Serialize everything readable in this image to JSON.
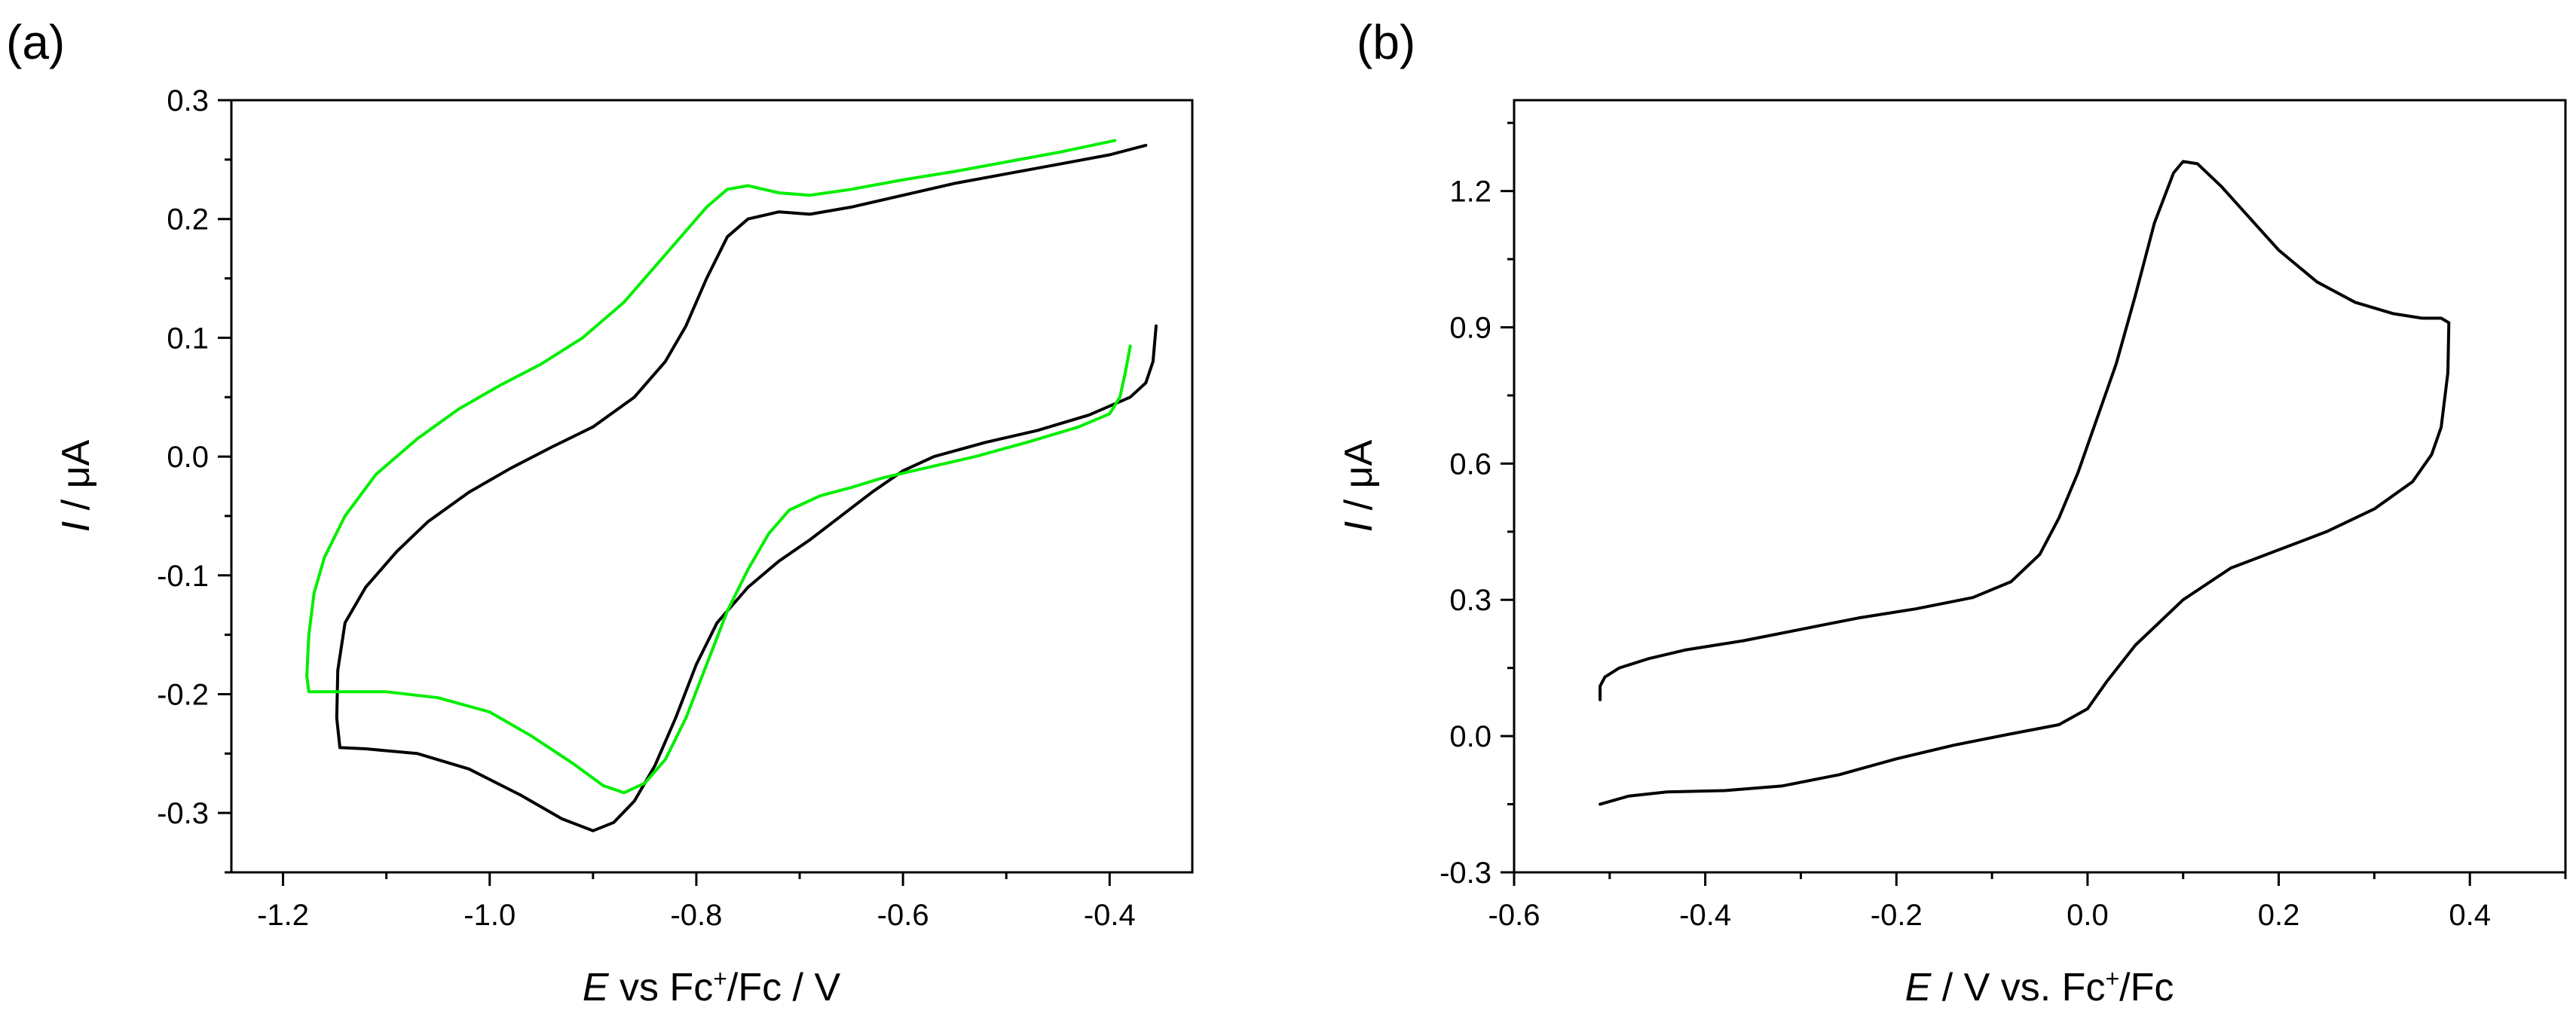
{
  "chart_data": [
    {
      "panel": "(a)",
      "type": "line",
      "xlabel": "E vs Fc+/Fc / V",
      "xlabel_parts": {
        "var": "E",
        "pre": " vs Fc",
        "sup": "+",
        "post": "/Fc / V"
      },
      "ylabel": "I / μA",
      "ylabel_parts": {
        "var": "I",
        "post": " / μA"
      },
      "xlim": [
        -1.25,
        -0.32
      ],
      "ylim": [
        -0.35,
        0.3
      ],
      "xticks": [
        -1.2,
        -1.0,
        -0.8,
        -0.6,
        -0.4
      ],
      "xtick_labels": [
        "-1.2",
        "-1.0",
        "-0.8",
        "-0.6",
        "-0.4"
      ],
      "yticks": [
        -0.3,
        -0.2,
        -0.1,
        0.0,
        0.1,
        0.2,
        0.3
      ],
      "ytick_labels": [
        "-0.3",
        "-0.2",
        "-0.1",
        "0.0",
        "0.1",
        "0.2",
        "0.3"
      ],
      "series": [
        {
          "name": "black",
          "color": "#000000",
          "points": [
            [
              -0.355,
              0.11
            ],
            [
              -0.358,
              0.08
            ],
            [
              -0.365,
              0.062
            ],
            [
              -0.38,
              0.05
            ],
            [
              -0.42,
              0.035
            ],
            [
              -0.47,
              0.022
            ],
            [
              -0.52,
              0.012
            ],
            [
              -0.57,
              0.0
            ],
            [
              -0.6,
              -0.012
            ],
            [
              -0.63,
              -0.03
            ],
            [
              -0.66,
              -0.05
            ],
            [
              -0.69,
              -0.07
            ],
            [
              -0.72,
              -0.088
            ],
            [
              -0.75,
              -0.11
            ],
            [
              -0.78,
              -0.14
            ],
            [
              -0.8,
              -0.175
            ],
            [
              -0.82,
              -0.22
            ],
            [
              -0.84,
              -0.26
            ],
            [
              -0.86,
              -0.29
            ],
            [
              -0.88,
              -0.308
            ],
            [
              -0.9,
              -0.315
            ],
            [
              -0.93,
              -0.305
            ],
            [
              -0.97,
              -0.285
            ],
            [
              -1.02,
              -0.263
            ],
            [
              -1.07,
              -0.25
            ],
            [
              -1.12,
              -0.246
            ],
            [
              -1.145,
              -0.245
            ],
            [
              -1.148,
              -0.22
            ],
            [
              -1.147,
              -0.18
            ],
            [
              -1.14,
              -0.14
            ],
            [
              -1.12,
              -0.11
            ],
            [
              -1.09,
              -0.08
            ],
            [
              -1.06,
              -0.055
            ],
            [
              -1.02,
              -0.03
            ],
            [
              -0.98,
              -0.01
            ],
            [
              -0.94,
              0.008
            ],
            [
              -0.9,
              0.025
            ],
            [
              -0.86,
              0.05
            ],
            [
              -0.83,
              0.08
            ],
            [
              -0.81,
              0.11
            ],
            [
              -0.79,
              0.15
            ],
            [
              -0.77,
              0.185
            ],
            [
              -0.75,
              0.2
            ],
            [
              -0.72,
              0.206
            ],
            [
              -0.69,
              0.204
            ],
            [
              -0.65,
              0.21
            ],
            [
              -0.6,
              0.22
            ],
            [
              -0.55,
              0.23
            ],
            [
              -0.5,
              0.238
            ],
            [
              -0.45,
              0.246
            ],
            [
              -0.4,
              0.254
            ],
            [
              -0.365,
              0.262
            ]
          ]
        },
        {
          "name": "green",
          "color": "#00ee00",
          "points": [
            [
              -0.38,
              0.093
            ],
            [
              -0.385,
              0.07
            ],
            [
              -0.39,
              0.05
            ],
            [
              -0.4,
              0.036
            ],
            [
              -0.43,
              0.025
            ],
            [
              -0.48,
              0.012
            ],
            [
              -0.53,
              0.0
            ],
            [
              -0.58,
              -0.01
            ],
            [
              -0.62,
              -0.018
            ],
            [
              -0.65,
              -0.026
            ],
            [
              -0.68,
              -0.033
            ],
            [
              -0.71,
              -0.045
            ],
            [
              -0.73,
              -0.065
            ],
            [
              -0.75,
              -0.095
            ],
            [
              -0.77,
              -0.13
            ],
            [
              -0.79,
              -0.175
            ],
            [
              -0.81,
              -0.22
            ],
            [
              -0.83,
              -0.255
            ],
            [
              -0.85,
              -0.275
            ],
            [
              -0.87,
              -0.283
            ],
            [
              -0.89,
              -0.277
            ],
            [
              -0.92,
              -0.258
            ],
            [
              -0.96,
              -0.235
            ],
            [
              -1.0,
              -0.215
            ],
            [
              -1.05,
              -0.203
            ],
            [
              -1.1,
              -0.198
            ],
            [
              -1.14,
              -0.198
            ],
            [
              -1.175,
              -0.198
            ],
            [
              -1.177,
              -0.185
            ],
            [
              -1.175,
              -0.15
            ],
            [
              -1.17,
              -0.115
            ],
            [
              -1.16,
              -0.085
            ],
            [
              -1.14,
              -0.05
            ],
            [
              -1.11,
              -0.015
            ],
            [
              -1.07,
              0.015
            ],
            [
              -1.03,
              0.04
            ],
            [
              -0.99,
              0.06
            ],
            [
              -0.95,
              0.078
            ],
            [
              -0.91,
              0.1
            ],
            [
              -0.87,
              0.13
            ],
            [
              -0.84,
              0.16
            ],
            [
              -0.81,
              0.19
            ],
            [
              -0.79,
              0.21
            ],
            [
              -0.77,
              0.225
            ],
            [
              -0.75,
              0.228
            ],
            [
              -0.72,
              0.222
            ],
            [
              -0.69,
              0.22
            ],
            [
              -0.65,
              0.225
            ],
            [
              -0.6,
              0.233
            ],
            [
              -0.55,
              0.24
            ],
            [
              -0.5,
              0.248
            ],
            [
              -0.45,
              0.256
            ],
            [
              -0.395,
              0.266
            ]
          ]
        }
      ]
    },
    {
      "panel": "(b)",
      "type": "line",
      "xlabel": "E / V vs. Fc+/Fc",
      "xlabel_parts": {
        "var": "E",
        "pre": " / V vs. Fc",
        "sup": "+",
        "post": "/Fc"
      },
      "ylabel": "I / μA",
      "ylabel_parts": {
        "var": "I",
        "post": " / μA"
      },
      "xlim": [
        -0.6,
        0.5
      ],
      "ylim": [
        -0.3,
        1.4
      ],
      "xticks": [
        -0.6,
        -0.4,
        -0.2,
        0.0,
        0.2,
        0.4
      ],
      "xtick_labels": [
        "-0.6",
        "-0.4",
        "-0.2",
        "0.0",
        "0.2",
        "0.4"
      ],
      "yticks": [
        -0.3,
        0.0,
        0.3,
        0.6,
        0.9,
        1.2
      ],
      "ytick_labels": [
        "-0.3",
        "0.0",
        "0.3",
        "0.6",
        "0.9",
        "1.2"
      ],
      "series": [
        {
          "name": "black",
          "color": "#000000",
          "points": [
            [
              -0.51,
              0.08
            ],
            [
              -0.51,
              0.11
            ],
            [
              -0.505,
              0.13
            ],
            [
              -0.49,
              0.15
            ],
            [
              -0.46,
              0.17
            ],
            [
              -0.42,
              0.19
            ],
            [
              -0.36,
              0.21
            ],
            [
              -0.3,
              0.235
            ],
            [
              -0.24,
              0.26
            ],
            [
              -0.18,
              0.28
            ],
            [
              -0.12,
              0.305
            ],
            [
              -0.08,
              0.34
            ],
            [
              -0.05,
              0.4
            ],
            [
              -0.03,
              0.48
            ],
            [
              -0.01,
              0.58
            ],
            [
              0.01,
              0.7
            ],
            [
              0.03,
              0.82
            ],
            [
              0.05,
              0.97
            ],
            [
              0.07,
              1.13
            ],
            [
              0.09,
              1.24
            ],
            [
              0.1,
              1.265
            ],
            [
              0.115,
              1.26
            ],
            [
              0.14,
              1.21
            ],
            [
              0.17,
              1.14
            ],
            [
              0.2,
              1.07
            ],
            [
              0.24,
              1.0
            ],
            [
              0.28,
              0.955
            ],
            [
              0.32,
              0.93
            ],
            [
              0.35,
              0.92
            ],
            [
              0.37,
              0.92
            ],
            [
              0.378,
              0.91
            ],
            [
              0.377,
              0.8
            ],
            [
              0.37,
              0.68
            ],
            [
              0.36,
              0.62
            ],
            [
              0.34,
              0.56
            ],
            [
              0.3,
              0.5
            ],
            [
              0.25,
              0.45
            ],
            [
              0.2,
              0.41
            ],
            [
              0.15,
              0.37
            ],
            [
              0.1,
              0.3
            ],
            [
              0.05,
              0.2
            ],
            [
              0.02,
              0.12
            ],
            [
              0.0,
              0.06
            ],
            [
              -0.03,
              0.025
            ],
            [
              -0.08,
              0.005
            ],
            [
              -0.14,
              -0.02
            ],
            [
              -0.2,
              -0.05
            ],
            [
              -0.26,
              -0.085
            ],
            [
              -0.32,
              -0.11
            ],
            [
              -0.38,
              -0.12
            ],
            [
              -0.44,
              -0.123
            ],
            [
              -0.48,
              -0.132
            ],
            [
              -0.51,
              -0.15
            ]
          ]
        }
      ]
    }
  ]
}
